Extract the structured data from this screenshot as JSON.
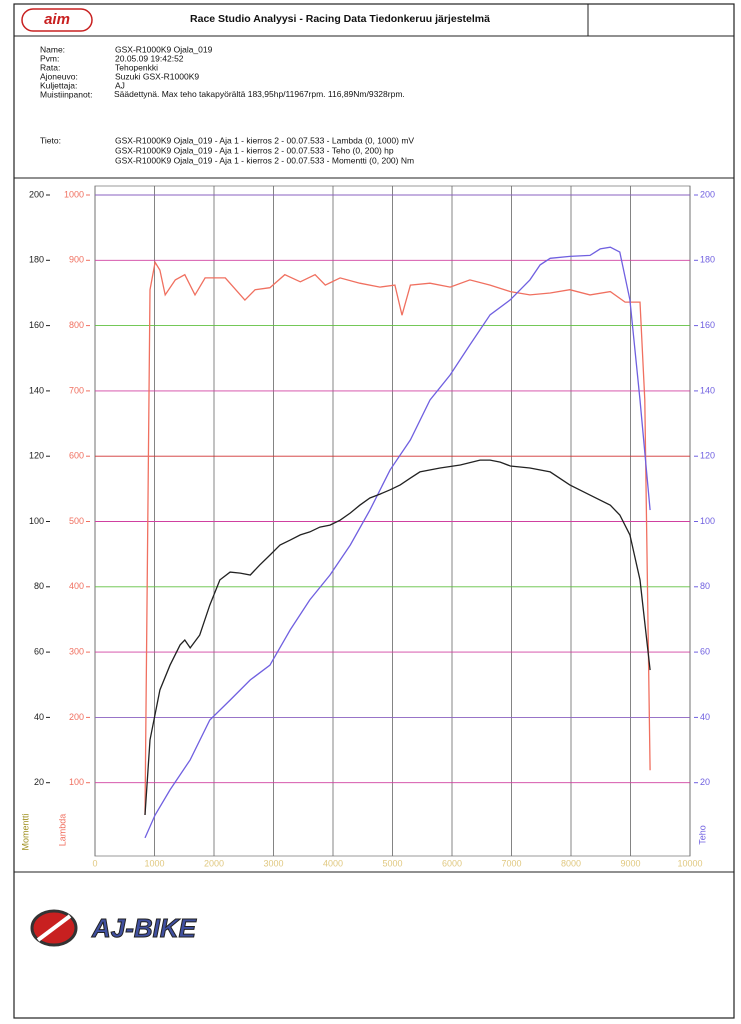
{
  "header": {
    "logo": "aim",
    "title": "Race Studio Analyysi - Racing Data Tiedonkeruu järjestelmä"
  },
  "info": [
    {
      "label": "Name:",
      "value": "GSX-R1000K9 Ojala_019"
    },
    {
      "label": "Pvm:",
      "value": "20.05.09 19:42:52"
    },
    {
      "label": "Rata:",
      "value": "Tehopenkki"
    },
    {
      "label": "Ajoneuvo:",
      "value": "Suzuki GSX-R1000K9"
    },
    {
      "label": "Kuljettaja:",
      "value": "AJ"
    },
    {
      "label": "Muistiinpanot:",
      "value": "Säädettynä. Max teho takapyörältä 183,95hp/11967rpm. 116,89Nm/9328rpm."
    }
  ],
  "legend_label": "Tieto:",
  "chart_data": {
    "type": "line",
    "y_label": "Momentti",
    "y3_label": "Lambda",
    "y2_label": "Teho",
    "xlim": [
      0,
      10000
    ],
    "xticks": [
      0,
      1000,
      2000,
      3000,
      4000,
      5000,
      6000,
      7000,
      8000,
      9000,
      10000
    ],
    "ylim": [
      0,
      200
    ],
    "yticks": [
      20,
      40,
      60,
      80,
      100,
      120,
      140,
      160,
      180,
      200
    ],
    "y3lim": [
      0,
      1000
    ],
    "y3ticks": [
      100,
      200,
      300,
      400,
      500,
      600,
      700,
      800,
      900,
      1000
    ],
    "y2lim": [
      0,
      200
    ],
    "y2ticks": [
      20,
      40,
      60,
      80,
      100,
      120,
      140,
      160,
      180,
      200
    ],
    "grid": true,
    "series": [
      {
        "name": "GSX-R1000K9 Ojala_019 - Aja 1 - kierros 2 - 00.07.533 - Lambda (0, 1000) mV",
        "color": "#f07060",
        "axis": "y3",
        "x": [
          840,
          925,
          1010,
          1090,
          1180,
          1350,
          1510,
          1680,
          1850,
          2190,
          2520,
          2690,
          2940,
          3190,
          3450,
          3700,
          3870,
          4120,
          4450,
          4790,
          5040,
          5160,
          5300,
          5630,
          5970,
          6300,
          6640,
          6980,
          7310,
          7650,
          7980,
          8320,
          8660,
          8910,
          9160,
          9240,
          9330
        ],
        "values": [
          51,
          855,
          897,
          885,
          847,
          870,
          878,
          847,
          873,
          873,
          839,
          855,
          858,
          878,
          867,
          878,
          862,
          873,
          865,
          859,
          862,
          816,
          862,
          865,
          859,
          870,
          862,
          852,
          847,
          850,
          855,
          847,
          852,
          836,
          836,
          686,
          119
        ]
      },
      {
        "name": "GSX-R1000K9 Ojala_019 - Aja 1 - kierros 2 - 00.07.533 - Teho (0, 200) hp",
        "color": "#7060e0",
        "axis": "y2",
        "x": [
          840,
          1010,
          1260,
          1600,
          1930,
          2270,
          2610,
          2940,
          3280,
          3610,
          3950,
          4290,
          4620,
          4960,
          5300,
          5630,
          5970,
          6300,
          6640,
          6980,
          7310,
          7480,
          7650,
          7980,
          8320,
          8490,
          8660,
          8820,
          8990,
          9160,
          9330
        ],
        "values": [
          3.1,
          10.1,
          17.8,
          27.0,
          39.2,
          45.3,
          51.5,
          56.0,
          66.8,
          76.0,
          83.6,
          92.8,
          103.5,
          115.8,
          125.0,
          137.2,
          144.9,
          154.1,
          163.3,
          167.9,
          174.0,
          178.6,
          180.6,
          181.2,
          181.5,
          183.5,
          184.0,
          182.5,
          167.9,
          137.2,
          103.5
        ]
      },
      {
        "name": "GSX-R1000K9 Ojala_019 - Aja 1 - kierros 2 - 00.07.533 - Momentti (0, 200) Nm",
        "color": "#222222",
        "axis": "y",
        "x": [
          840,
          925,
          1090,
          1260,
          1430,
          1510,
          1600,
          1760,
          1930,
          2100,
          2270,
          2440,
          2610,
          2770,
          2940,
          3110,
          3280,
          3450,
          3610,
          3780,
          3950,
          4120,
          4290,
          4450,
          4620,
          4790,
          4960,
          5130,
          5300,
          5460,
          5800,
          6140,
          6470,
          6640,
          6810,
          6980,
          7310,
          7650,
          7980,
          8320,
          8660,
          8820,
          8990,
          9160,
          9330
        ],
        "values": [
          10.1,
          33.1,
          48.4,
          56.0,
          62.2,
          63.7,
          61.3,
          65.2,
          74.4,
          82.1,
          84.5,
          84.2,
          83.6,
          86.7,
          89.7,
          92.8,
          94.3,
          95.9,
          96.8,
          98.3,
          98.9,
          100.4,
          102.6,
          105.0,
          107.2,
          108.4,
          109.7,
          111.2,
          113.3,
          115.2,
          116.4,
          117.3,
          118.8,
          118.8,
          118.2,
          117.0,
          116.4,
          115.2,
          111.2,
          108.1,
          105.0,
          102.0,
          95.9,
          82.1,
          54.5
        ]
      }
    ]
  },
  "footer": {
    "logo": "AJ-BIKE"
  }
}
